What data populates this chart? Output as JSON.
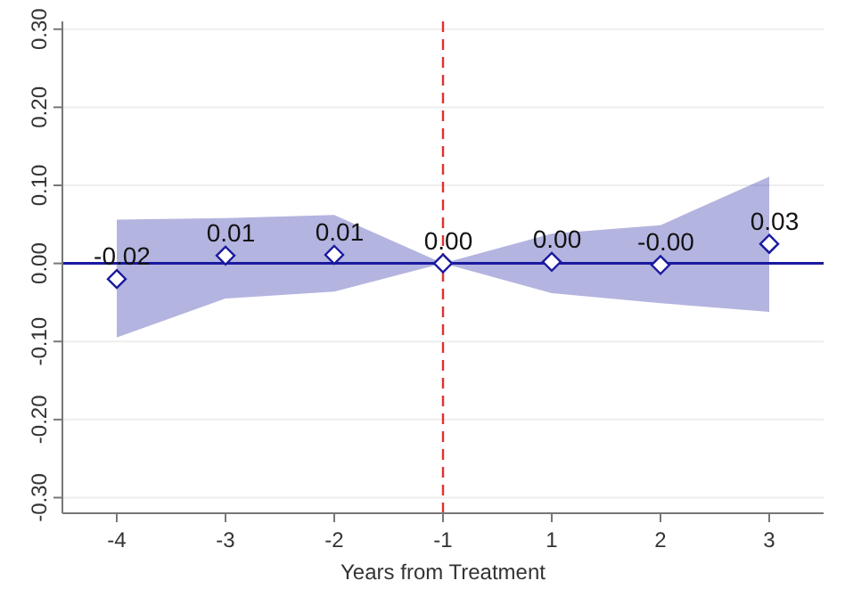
{
  "chart_data": {
    "type": "scatter",
    "xlabel": "Years from Treatment",
    "categories": [
      "-4",
      "-3",
      "-2",
      "-1",
      "1",
      "2",
      "3"
    ],
    "series": [
      {
        "color": "#1a1aa0",
        "marker": "diamond",
        "values": [
          -0.02,
          0.01,
          0.011,
          0,
          0.002,
          -0.002,
          0.025
        ],
        "lower": [
          -0.095,
          -0.045,
          -0.036,
          0,
          -0.038,
          -0.051,
          -0.062
        ],
        "upper": [
          0.056,
          0.058,
          0.062,
          0,
          0.038,
          0.049,
          0.111
        ],
        "value_labels": [
          "-0.02",
          "0.01",
          "0.01",
          "0.00",
          "0.00",
          "-0.00",
          "0.03"
        ]
      }
    ],
    "ylim": [
      -0.32,
      0.31
    ],
    "yticks": [
      {
        "value": -0.3,
        "label": "-0.30"
      },
      {
        "value": -0.2,
        "label": "-0.20"
      },
      {
        "value": -0.1,
        "label": "-0.10"
      },
      {
        "value": 0,
        "label": "0.00"
      },
      {
        "value": 0.1,
        "label": "0.10"
      },
      {
        "value": 0.2,
        "label": "0.20"
      },
      {
        "value": 0.3,
        "label": "0.30"
      }
    ],
    "grid": "y",
    "ref_lines": [
      {
        "axis": "y",
        "value": 0,
        "color": "#1a1aa0",
        "line_style": "solid"
      },
      {
        "axis": "x",
        "value": "-1",
        "color": "#e03030",
        "line_style": "dashed"
      }
    ]
  }
}
